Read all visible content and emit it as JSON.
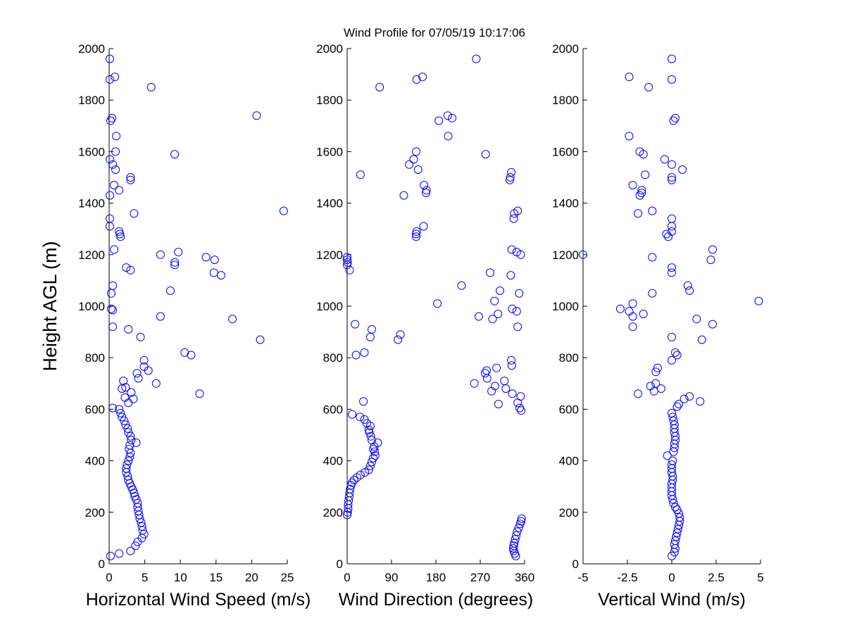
{
  "figure": {
    "title": "Wind Profile for  07/05/19 10:17:06"
  },
  "colors": {
    "marker": "#0000ff",
    "axis": "#000000",
    "background": "#ffffff"
  },
  "chart_data": [
    {
      "type": "scatter",
      "id": "speed",
      "xlabel": "Horizontal Wind Speed (m/s)",
      "ylabel": "Height AGL (m)",
      "xlim": [
        0,
        25
      ],
      "ylim": [
        0,
        2000
      ],
      "xticks": [
        0,
        5,
        10,
        15,
        20,
        25
      ],
      "xtick_labels": [
        "0",
        "5",
        "10",
        "15",
        "20",
        "25"
      ],
      "yticks": [
        0,
        200,
        400,
        600,
        800,
        1000,
        1200,
        1400,
        1600,
        1800,
        2000
      ],
      "ytick_labels": [
        "0",
        "200",
        "400",
        "600",
        "800",
        "1000",
        "1200",
        "1400",
        "1600",
        "1800",
        "2000"
      ],
      "grid": false,
      "marker": "circle-open",
      "points": [
        [
          0.2,
          30
        ],
        [
          1.4,
          40
        ],
        [
          3.0,
          50
        ],
        [
          3.7,
          70
        ],
        [
          4.0,
          85
        ],
        [
          4.6,
          100
        ],
        [
          4.9,
          115
        ],
        [
          4.7,
          130
        ],
        [
          4.6,
          145
        ],
        [
          4.5,
          160
        ],
        [
          4.3,
          175
        ],
        [
          4.2,
          190
        ],
        [
          4.1,
          205
        ],
        [
          4.0,
          220
        ],
        [
          4.0,
          235
        ],
        [
          3.8,
          250
        ],
        [
          3.6,
          262
        ],
        [
          3.5,
          275
        ],
        [
          3.3,
          288
        ],
        [
          3.1,
          300
        ],
        [
          2.9,
          312
        ],
        [
          2.7,
          325
        ],
        [
          2.6,
          340
        ],
        [
          2.4,
          355
        ],
        [
          2.4,
          370
        ],
        [
          2.5,
          385
        ],
        [
          2.7,
          400
        ],
        [
          2.9,
          415
        ],
        [
          3.0,
          430
        ],
        [
          2.8,
          445
        ],
        [
          2.9,
          460
        ],
        [
          3.8,
          470
        ],
        [
          3.1,
          480
        ],
        [
          3.0,
          495
        ],
        [
          2.7,
          510
        ],
        [
          2.6,
          525
        ],
        [
          2.3,
          540
        ],
        [
          2.1,
          555
        ],
        [
          1.8,
          570
        ],
        [
          1.6,
          585
        ],
        [
          1.4,
          600
        ],
        [
          0.5,
          605
        ],
        [
          2.7,
          625
        ],
        [
          3.4,
          640
        ],
        [
          2.2,
          645
        ],
        [
          3.1,
          665
        ],
        [
          1.8,
          680
        ],
        [
          2.3,
          685
        ],
        [
          6.6,
          700
        ],
        [
          2.0,
          710
        ],
        [
          4.1,
          720
        ],
        [
          3.9,
          740
        ],
        [
          5.5,
          750
        ],
        [
          4.9,
          765
        ],
        [
          4.9,
          790
        ],
        [
          10.6,
          820
        ],
        [
          11.5,
          810
        ],
        [
          12.7,
          660
        ],
        [
          4.4,
          880
        ],
        [
          2.7,
          910
        ],
        [
          0.5,
          920
        ],
        [
          7.2,
          960
        ],
        [
          17.3,
          950
        ],
        [
          21.2,
          870
        ],
        [
          0.5,
          985
        ],
        [
          0.3,
          990
        ],
        [
          8.6,
          1060
        ],
        [
          0.3,
          1050
        ],
        [
          0.5,
          1080
        ],
        [
          14.7,
          1130
        ],
        [
          15.7,
          1120
        ],
        [
          3.0,
          1140
        ],
        [
          2.4,
          1150
        ],
        [
          9.2,
          1160
        ],
        [
          9.2,
          1170
        ],
        [
          14.8,
          1180
        ],
        [
          13.6,
          1190
        ],
        [
          7.2,
          1200
        ],
        [
          9.7,
          1210
        ],
        [
          0.7,
          1220
        ],
        [
          1.6,
          1270
        ],
        [
          1.5,
          1280
        ],
        [
          1.4,
          1290
        ],
        [
          0.1,
          1310
        ],
        [
          0.1,
          1340
        ],
        [
          3.5,
          1360
        ],
        [
          24.5,
          1370
        ],
        [
          0.1,
          1430
        ],
        [
          1.4,
          1450
        ],
        [
          0.7,
          1470
        ],
        [
          3.0,
          1490
        ],
        [
          3.0,
          1500
        ],
        [
          0.9,
          1530
        ],
        [
          0.5,
          1550
        ],
        [
          0.1,
          1570
        ],
        [
          9.2,
          1590
        ],
        [
          0.9,
          1600
        ],
        [
          1.0,
          1660
        ],
        [
          0.2,
          1720
        ],
        [
          0.4,
          1730
        ],
        [
          20.7,
          1740
        ],
        [
          5.9,
          1850
        ],
        [
          0.1,
          1880
        ],
        [
          0.8,
          1890
        ],
        [
          0.1,
          1960
        ]
      ]
    },
    {
      "type": "scatter",
      "id": "direction",
      "xlabel": "Wind Direction (degrees)",
      "xlim": [
        0,
        360
      ],
      "ylim": [
        0,
        2000
      ],
      "xticks": [
        0,
        90,
        180,
        270,
        360
      ],
      "xtick_labels": [
        "0",
        "90",
        "180",
        "270",
        "360"
      ],
      "yticks": [
        0,
        200,
        400,
        600,
        800,
        1000,
        1200,
        1400,
        1600,
        1800,
        2000
      ],
      "ytick_labels": [
        "0",
        "200",
        "400",
        "600",
        "800",
        "1000",
        "1200",
        "1400",
        "1600",
        "1800",
        "2000"
      ],
      "grid": false,
      "marker": "circle-open",
      "points": [
        [
          342,
          30
        ],
        [
          340,
          40
        ],
        [
          338,
          50
        ],
        [
          337,
          60
        ],
        [
          338,
          70
        ],
        [
          339,
          80
        ],
        [
          341,
          95
        ],
        [
          343,
          110
        ],
        [
          345,
          125
        ],
        [
          348,
          140
        ],
        [
          351,
          155
        ],
        [
          353,
          165
        ],
        [
          354,
          175
        ],
        [
          0,
          190
        ],
        [
          1,
          200
        ],
        [
          2,
          215
        ],
        [
          2,
          230
        ],
        [
          3,
          245
        ],
        [
          4,
          260
        ],
        [
          5,
          275
        ],
        [
          6,
          290
        ],
        [
          8,
          305
        ],
        [
          10,
          315
        ],
        [
          14,
          325
        ],
        [
          20,
          335
        ],
        [
          27,
          345
        ],
        [
          36,
          355
        ],
        [
          44,
          365
        ],
        [
          47,
          380
        ],
        [
          50,
          395
        ],
        [
          53,
          410
        ],
        [
          57,
          420
        ],
        [
          56,
          435
        ],
        [
          53,
          445
        ],
        [
          55,
          455
        ],
        [
          62,
          470
        ],
        [
          50,
          480
        ],
        [
          48,
          495
        ],
        [
          45,
          510
        ],
        [
          44,
          520
        ],
        [
          47,
          535
        ],
        [
          40,
          545
        ],
        [
          35,
          560
        ],
        [
          26,
          570
        ],
        [
          10,
          580
        ],
        [
          33,
          630
        ],
        [
          353,
          595
        ],
        [
          350,
          605
        ],
        [
          346,
          625
        ],
        [
          352,
          650
        ],
        [
          335,
          660
        ],
        [
          322,
          680
        ],
        [
          319,
          710
        ],
        [
          300,
          690
        ],
        [
          293,
          670
        ],
        [
          303,
          760
        ],
        [
          284,
          720
        ],
        [
          280,
          740
        ],
        [
          283,
          750
        ],
        [
          258,
          700
        ],
        [
          307,
          620
        ],
        [
          334,
          770
        ],
        [
          333,
          790
        ],
        [
          35,
          820
        ],
        [
          18,
          810
        ],
        [
          16,
          930
        ],
        [
          50,
          910
        ],
        [
          47,
          880
        ],
        [
          103,
          870
        ],
        [
          108,
          890
        ],
        [
          267,
          960
        ],
        [
          295,
          950
        ],
        [
          310,
          1060
        ],
        [
          299,
          1020
        ],
        [
          306,
          970
        ],
        [
          335,
          990
        ],
        [
          344,
          980
        ],
        [
          349,
          1050
        ],
        [
          346,
          920
        ],
        [
          183,
          1010
        ],
        [
          232,
          1080
        ],
        [
          290,
          1130
        ],
        [
          332,
          1120
        ],
        [
          5,
          1140
        ],
        [
          0,
          1160
        ],
        [
          1,
          1170
        ],
        [
          0,
          1180
        ],
        [
          0,
          1190
        ],
        [
          334,
          1220
        ],
        [
          344,
          1210
        ],
        [
          352,
          1200
        ],
        [
          140,
          1270
        ],
        [
          140,
          1280
        ],
        [
          141,
          1290
        ],
        [
          155,
          1310
        ],
        [
          338,
          1340
        ],
        [
          339,
          1360
        ],
        [
          346,
          1370
        ],
        [
          115,
          1430
        ],
        [
          160,
          1440
        ],
        [
          161,
          1450
        ],
        [
          156,
          1470
        ],
        [
          330,
          1490
        ],
        [
          331,
          1500
        ],
        [
          333,
          1520
        ],
        [
          27,
          1510
        ],
        [
          144,
          1530
        ],
        [
          126,
          1550
        ],
        [
          135,
          1570
        ],
        [
          140,
          1600
        ],
        [
          281,
          1590
        ],
        [
          205,
          1660
        ],
        [
          186,
          1720
        ],
        [
          204,
          1740
        ],
        [
          213,
          1730
        ],
        [
          66,
          1850
        ],
        [
          141,
          1880
        ],
        [
          153,
          1890
        ],
        [
          262,
          1960
        ]
      ]
    },
    {
      "type": "scatter",
      "id": "vertical",
      "xlabel": "Vertical Wind (m/s)",
      "xlim": [
        -5,
        5
      ],
      "ylim": [
        0,
        2000
      ],
      "xticks": [
        -5,
        -2.5,
        0,
        2.5,
        5
      ],
      "xtick_labels": [
        "-5",
        "-2.5",
        "0",
        "2.5",
        "5"
      ],
      "yticks": [
        0,
        200,
        400,
        600,
        800,
        1000,
        1200,
        1400,
        1600,
        1800,
        2000
      ],
      "ytick_labels": [
        "0",
        "200",
        "400",
        "600",
        "800",
        "1000",
        "1200",
        "1400",
        "1600",
        "1800",
        "2000"
      ],
      "grid": false,
      "marker": "circle-open",
      "points": [
        [
          0.0,
          30
        ],
        [
          0.15,
          45
        ],
        [
          0.2,
          60
        ],
        [
          0.15,
          75
        ],
        [
          0.2,
          90
        ],
        [
          0.25,
          105
        ],
        [
          0.3,
          120
        ],
        [
          0.35,
          135
        ],
        [
          0.4,
          150
        ],
        [
          0.45,
          165
        ],
        [
          0.45,
          180
        ],
        [
          0.4,
          195
        ],
        [
          0.3,
          210
        ],
        [
          0.2,
          220
        ],
        [
          0.1,
          235
        ],
        [
          0.05,
          250
        ],
        [
          0.0,
          265
        ],
        [
          0.0,
          280
        ],
        [
          0.0,
          295
        ],
        [
          0.0,
          310
        ],
        [
          0.05,
          325
        ],
        [
          0.05,
          340
        ],
        [
          0.0,
          355
        ],
        [
          0.0,
          370
        ],
        [
          0.0,
          385
        ],
        [
          0.05,
          400
        ],
        [
          -0.25,
          420
        ],
        [
          0.1,
          435
        ],
        [
          0.15,
          450
        ],
        [
          0.15,
          465
        ],
        [
          0.2,
          480
        ],
        [
          0.2,
          495
        ],
        [
          0.15,
          510
        ],
        [
          0.15,
          525
        ],
        [
          0.15,
          540
        ],
        [
          0.1,
          555
        ],
        [
          0.05,
          570
        ],
        [
          0.0,
          585
        ],
        [
          0.4,
          620
        ],
        [
          0.3,
          610
        ],
        [
          1.0,
          650
        ],
        [
          0.7,
          640
        ],
        [
          1.6,
          630
        ],
        [
          -1.2,
          690
        ],
        [
          -0.9,
          700
        ],
        [
          -0.6,
          680
        ],
        [
          -1.0,
          670
        ],
        [
          -1.9,
          660
        ],
        [
          -0.8,
          760
        ],
        [
          -0.9,
          745
        ],
        [
          0.0,
          790
        ],
        [
          0.2,
          820
        ],
        [
          0.3,
          810
        ],
        [
          -2.2,
          920
        ],
        [
          -2.2,
          960
        ],
        [
          -2.4,
          980
        ],
        [
          -2.9,
          990
        ],
        [
          -1.6,
          970
        ],
        [
          0.0,
          880
        ],
        [
          1.7,
          870
        ],
        [
          2.3,
          930
        ],
        [
          1.4,
          950
        ],
        [
          -2.2,
          1010
        ],
        [
          -1.1,
          1050
        ],
        [
          1.0,
          1060
        ],
        [
          0.9,
          1080
        ],
        [
          4.9,
          1020
        ],
        [
          0.0,
          1130
        ],
        [
          0.0,
          1150
        ],
        [
          -5.0,
          1200
        ],
        [
          -1.1,
          1190
        ],
        [
          2.2,
          1180
        ],
        [
          2.3,
          1220
        ],
        [
          -0.2,
          1270
        ],
        [
          -0.3,
          1280
        ],
        [
          0.0,
          1290
        ],
        [
          0.0,
          1310
        ],
        [
          0.0,
          1340
        ],
        [
          -1.9,
          1360
        ],
        [
          -1.1,
          1370
        ],
        [
          -1.8,
          1430
        ],
        [
          -1.7,
          1440
        ],
        [
          -1.7,
          1450
        ],
        [
          -2.2,
          1470
        ],
        [
          0.0,
          1490
        ],
        [
          0.0,
          1500
        ],
        [
          -1.5,
          1510
        ],
        [
          0.6,
          1530
        ],
        [
          0.0,
          1550
        ],
        [
          -0.4,
          1570
        ],
        [
          -1.6,
          1590
        ],
        [
          -1.8,
          1600
        ],
        [
          -2.4,
          1660
        ],
        [
          0.1,
          1720
        ],
        [
          0.2,
          1730
        ],
        [
          -1.3,
          1850
        ],
        [
          0.0,
          1880
        ],
        [
          -2.4,
          1890
        ],
        [
          0.0,
          1960
        ]
      ]
    }
  ]
}
